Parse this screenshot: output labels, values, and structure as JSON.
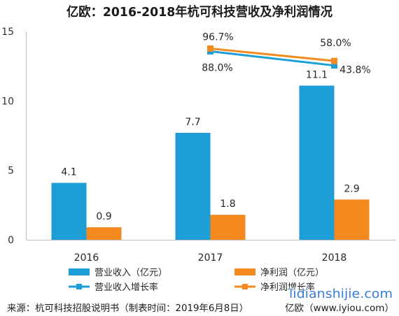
{
  "chart_data": {
    "type": "bar",
    "title": "亿欧：2016-2018年杭可科技营收及净利润情况",
    "categories": [
      "2016",
      "2017",
      "2018"
    ],
    "ylim": [
      0,
      15
    ],
    "yticks": [
      0,
      5,
      10,
      15
    ],
    "y2lim": [
      -500,
      150
    ],
    "grid": false,
    "legend_position": "bottom",
    "series": [
      {
        "name": "营业收入（亿元）",
        "type": "bar",
        "axis": "primary",
        "color": "#1e9ed6",
        "values": [
          4.1,
          7.7,
          11.1
        ],
        "labels": [
          "4.1",
          "7.7",
          "11.1"
        ]
      },
      {
        "name": "净利润（亿元）",
        "type": "bar",
        "axis": "primary",
        "color": "#f48a1e",
        "values": [
          0.9,
          1.8,
          2.9
        ],
        "labels": [
          "0.9",
          "1.8",
          "2.9"
        ]
      },
      {
        "name": "营业收入增长率",
        "type": "line",
        "axis": "secondary",
        "color": "#1e9ed6",
        "values": [
          null,
          88.0,
          43.8
        ],
        "labels": [
          null,
          "88.0%",
          "43.8%"
        ]
      },
      {
        "name": "净利润增长率",
        "type": "line",
        "axis": "secondary",
        "color": "#f48a1e",
        "values": [
          null,
          96.7,
          58.0
        ],
        "labels": [
          null,
          "96.7%",
          "58.0%"
        ]
      }
    ]
  },
  "footer": {
    "source": "来源：杭可科技招股说明书（制表时间：2019年6月8日）",
    "brand": "亿欧（www.iyiou.com）"
  },
  "watermark": "lidianshijie.com"
}
